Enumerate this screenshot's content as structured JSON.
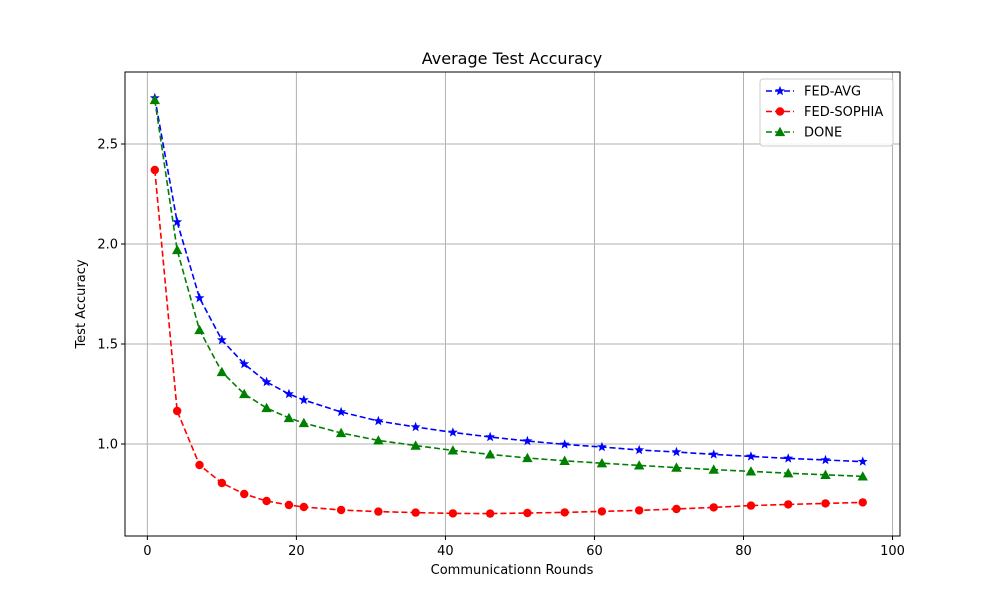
{
  "chart_data": {
    "type": "line",
    "title": "Average Test Accuracy",
    "xlabel": "Communicationn Rounds",
    "ylabel": "Test Accuracy",
    "xlim": [
      -3,
      101
    ],
    "ylim": [
      0.54,
      2.86
    ],
    "xticks": [
      0,
      20,
      40,
      60,
      80,
      100
    ],
    "yticks": [
      1.0,
      1.5,
      2.0,
      2.5
    ],
    "xtick_labels": [
      "0",
      "20",
      "40",
      "60",
      "80",
      "100"
    ],
    "ytick_labels": [
      "1.0",
      "1.5",
      "2.0",
      "2.5"
    ],
    "grid": true,
    "legend_position": "top-right",
    "x": [
      1,
      4,
      7,
      10,
      13,
      16,
      19,
      21,
      26,
      31,
      36,
      41,
      46,
      51,
      56,
      61,
      66,
      71,
      76,
      81,
      86,
      91,
      96
    ],
    "series": [
      {
        "name": "FED-AVG",
        "color": "#0000ff",
        "marker": "star",
        "values": [
          2.73,
          2.11,
          1.73,
          1.52,
          1.4,
          1.31,
          1.25,
          1.22,
          1.16,
          1.115,
          1.085,
          1.058,
          1.035,
          1.015,
          0.998,
          0.985,
          0.97,
          0.96,
          0.948,
          0.938,
          0.928,
          0.92,
          0.912
        ]
      },
      {
        "name": "FED-SOPHIA",
        "color": "#ff0000",
        "marker": "circle",
        "values": [
          2.37,
          1.165,
          0.895,
          0.805,
          0.75,
          0.715,
          0.695,
          0.685,
          0.67,
          0.662,
          0.657,
          0.653,
          0.652,
          0.655,
          0.658,
          0.663,
          0.668,
          0.675,
          0.683,
          0.692,
          0.698,
          0.703,
          0.708
        ]
      },
      {
        "name": "DONE",
        "color": "#008000",
        "marker": "triangle",
        "values": [
          2.72,
          1.97,
          1.57,
          1.36,
          1.25,
          1.18,
          1.13,
          1.105,
          1.055,
          1.018,
          0.992,
          0.968,
          0.948,
          0.93,
          0.916,
          0.904,
          0.893,
          0.882,
          0.872,
          0.863,
          0.854,
          0.846,
          0.838
        ]
      }
    ]
  }
}
